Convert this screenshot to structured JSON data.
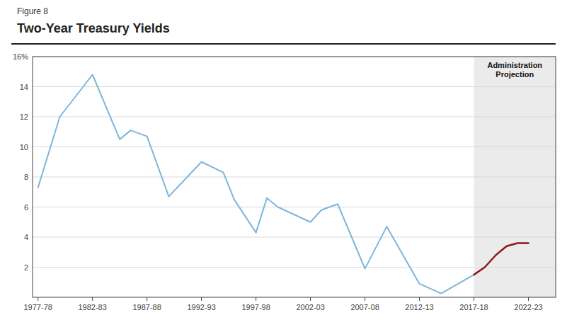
{
  "chart_data": {
    "type": "line",
    "title": "Two-Year Treasury Yields",
    "subtitle": "Figure 8",
    "annotations": [
      "Administration\nProjection"
    ],
    "series": [
      {
        "color": "#7EB6D9",
        "x": [
          0,
          2,
          5,
          7.5,
          8.5,
          10,
          12,
          15,
          17,
          18,
          20,
          21,
          22,
          25,
          26,
          27.5,
          30,
          32,
          35,
          37,
          40
        ],
        "values": [
          7.3,
          12.0,
          14.8,
          10.5,
          11.1,
          10.7,
          6.7,
          9.0,
          8.3,
          6.5,
          4.3,
          6.6,
          6.0,
          5.0,
          5.8,
          6.2,
          1.9,
          4.7,
          0.9,
          0.25,
          1.5
        ]
      },
      {
        "color": "#8B1A1A",
        "x": [
          40,
          41,
          42,
          43,
          44,
          45
        ],
        "values": [
          1.5,
          2.0,
          2.8,
          3.4,
          3.6,
          3.6
        ]
      }
    ],
    "xlim": [
      -0.5,
      47.5
    ],
    "xticks": [
      {
        "value": 0,
        "label": "1977-78"
      },
      {
        "value": 5,
        "label": "1982-83"
      },
      {
        "value": 10,
        "label": "1987-88"
      },
      {
        "value": 15,
        "label": "1992-93"
      },
      {
        "value": 20,
        "label": "1997-98"
      },
      {
        "value": 25,
        "label": "2002-03"
      },
      {
        "value": 30,
        "label": "2007-08"
      },
      {
        "value": 35,
        "label": "2012-13"
      },
      {
        "value": 40,
        "label": "2017-18"
      },
      {
        "value": 45,
        "label": "2022-23"
      }
    ],
    "ylim": [
      0,
      16
    ],
    "yticks": [
      2,
      4,
      6,
      8,
      10,
      12,
      14,
      {
        "value": 16,
        "label": "16%"
      }
    ],
    "grid": true
  }
}
